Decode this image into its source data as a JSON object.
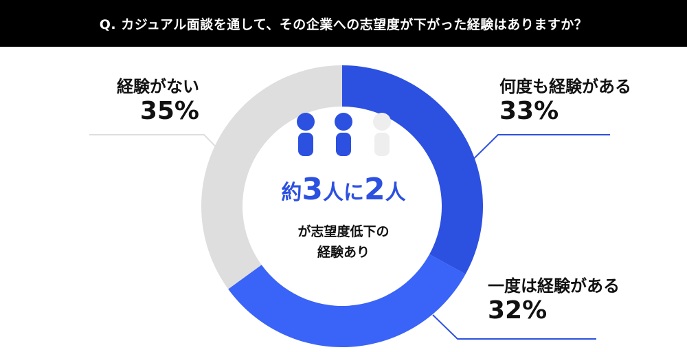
{
  "header": {
    "question": "Q. カジュアル面談を通して、その企業への志望度が下がった経験はありますか？"
  },
  "center": {
    "summary_parts": [
      "約",
      "3",
      "人に",
      "2",
      "人"
    ],
    "sub_line1": "が志望度低下の",
    "sub_line2": "経験あり"
  },
  "colors": {
    "dark_blue": "#2c50e0",
    "light_blue": "#3a63f7",
    "gray": "#dedede",
    "person_empty": "#eeeeee"
  },
  "chart_data": {
    "type": "pie",
    "donut": true,
    "title": "",
    "slices": [
      {
        "label": "何度も経験がある",
        "percent_label": "33%",
        "value": 33,
        "color": "#2c50e0"
      },
      {
        "label": "一度は経験がある",
        "percent_label": "32%",
        "value": 32,
        "color": "#3a63f7"
      },
      {
        "label": "経験がない",
        "percent_label": "35%",
        "value": 35,
        "color": "#dedede"
      }
    ]
  }
}
